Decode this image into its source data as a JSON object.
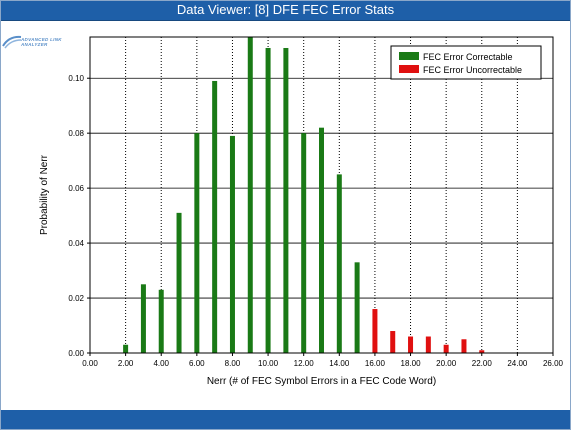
{
  "window": {
    "title": "Data Viewer: [8] DFE FEC Error Stats"
  },
  "logo": {
    "alt_text": "ADVANCED LINK ANALYZER",
    "color": "#5a8fc9"
  },
  "colors": {
    "correctable": "#1a7a16",
    "uncorrectable": "#e01010",
    "titlebar": "#1e5fa8"
  },
  "chart_data": {
    "type": "bar",
    "title": "",
    "xlabel": "Nerr (# of FEC Symbol Errors in a FEC Code Word)",
    "ylabel": "Probability of Nerr",
    "xlim": [
      0,
      26
    ],
    "ylim": [
      0,
      0.115
    ],
    "xticks": [
      "0.00",
      "2.00",
      "4.00",
      "6.00",
      "8.00",
      "10.00",
      "12.00",
      "14.00",
      "16.00",
      "18.00",
      "20.00",
      "22.00",
      "24.00",
      "26.00"
    ],
    "yticks": [
      "0.00",
      "0.02",
      "0.04",
      "0.06",
      "0.08",
      "0.10"
    ],
    "grid": {
      "x": "dotted",
      "y": "solid"
    },
    "legend_position": "top-right",
    "series": [
      {
        "name": "FEC Error Correctable",
        "color": "#1a7a16",
        "x": [
          2,
          3,
          4,
          5,
          6,
          7,
          8,
          9,
          10,
          11,
          12,
          13,
          14,
          15
        ],
        "values": [
          0.003,
          0.025,
          0.023,
          0.051,
          0.08,
          0.099,
          0.079,
          0.116,
          0.111,
          0.111,
          0.08,
          0.082,
          0.065,
          0.033
        ]
      },
      {
        "name": "FEC Error Uncorrectable",
        "color": "#e01010",
        "x": [
          16,
          17,
          18,
          19,
          20,
          21,
          22
        ],
        "values": [
          0.016,
          0.008,
          0.006,
          0.006,
          0.003,
          0.005,
          0.001
        ]
      }
    ]
  }
}
